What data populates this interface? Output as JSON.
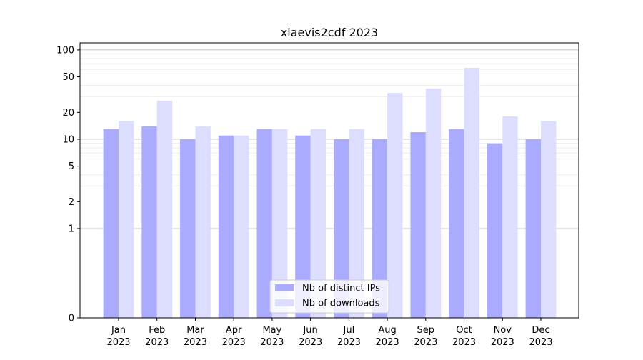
{
  "chart_data": {
    "type": "bar",
    "title": "xlaevis2cdf 2023",
    "xlabel": "",
    "ylabel": "",
    "yscale": "symlog",
    "ylim": [
      0,
      120
    ],
    "y_ticks": [
      0,
      1,
      2,
      5,
      10,
      20,
      50,
      100
    ],
    "y_tick_labels": [
      "0",
      "1",
      "2",
      "5",
      "10",
      "20",
      "50",
      "100"
    ],
    "grid": true,
    "legend_position": "lower-center",
    "categories": [
      "Jan\n2023",
      "Feb\n2023",
      "Mar\n2023",
      "Apr\n2023",
      "May\n2023",
      "Jun\n2023",
      "Jul\n2023",
      "Aug\n2023",
      "Sep\n2023",
      "Oct\n2023",
      "Nov\n2023",
      "Dec\n2023"
    ],
    "category_month": [
      "Jan",
      "Feb",
      "Mar",
      "Apr",
      "May",
      "Jun",
      "Jul",
      "Aug",
      "Sep",
      "Oct",
      "Nov",
      "Dec"
    ],
    "category_year": [
      "2023",
      "2023",
      "2023",
      "2023",
      "2023",
      "2023",
      "2023",
      "2023",
      "2023",
      "2023",
      "2023",
      "2023"
    ],
    "series": [
      {
        "name": "Nb of distinct IPs",
        "color": "#aaaaff",
        "values": [
          13,
          14,
          10,
          11,
          13,
          11,
          10,
          10,
          12,
          13,
          9,
          10
        ]
      },
      {
        "name": "Nb of downloads",
        "color": "#ddddff",
        "values": [
          16,
          27,
          14,
          11,
          13,
          13,
          13,
          33,
          37,
          63,
          18,
          16
        ]
      }
    ]
  }
}
